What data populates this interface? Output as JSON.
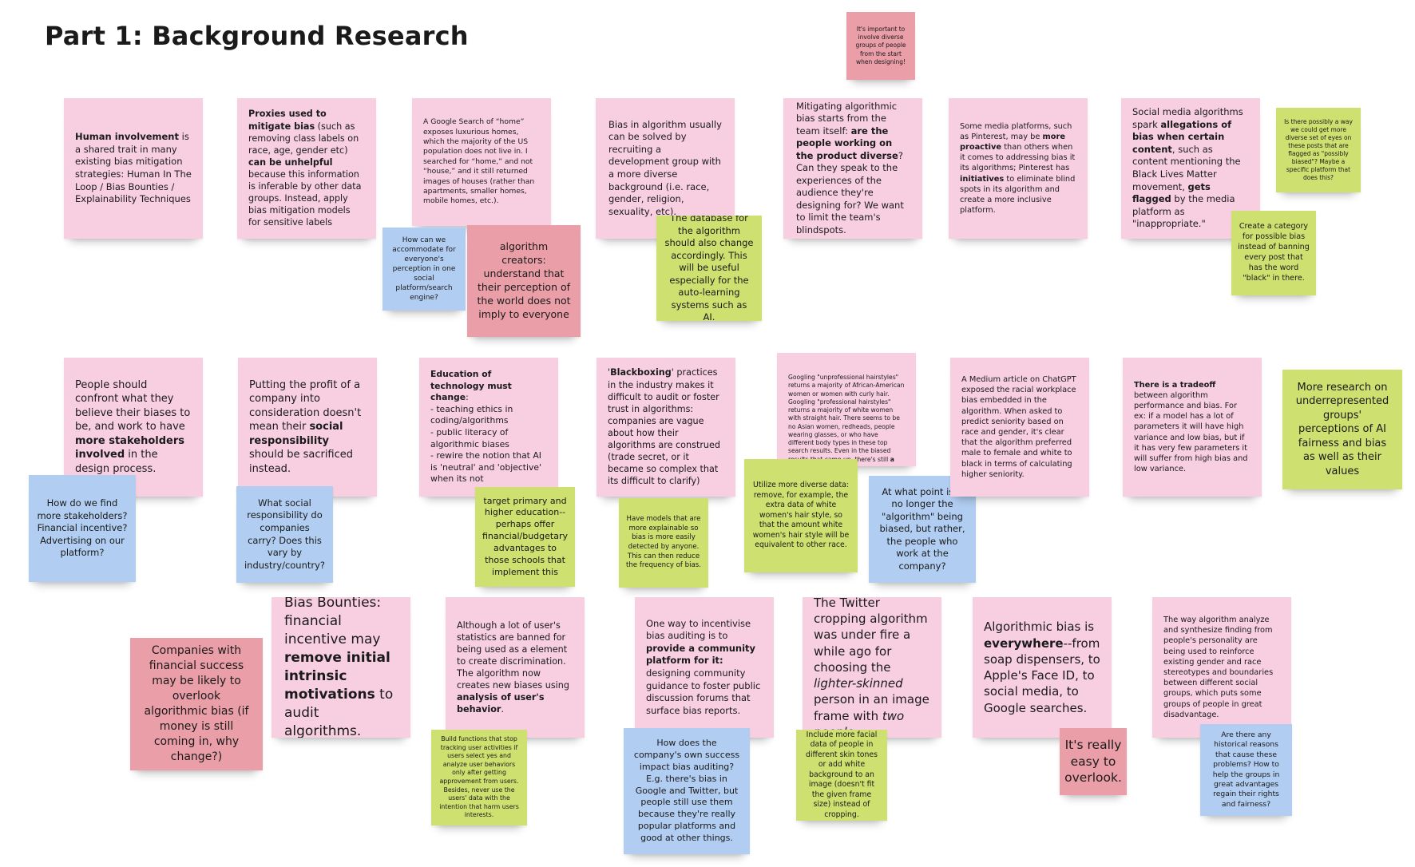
{
  "board": {
    "title": "Part 1: Background Research"
  },
  "colors": {
    "pink": "#f8cfe0",
    "red": "#ea9ea8",
    "green": "#cde070",
    "blue": "#b1cdf1"
  },
  "notes": {
    "n_top_red": "It's important to involve diverse groups of people from the start when designing!",
    "r1c1": "<b>Human involvement</b> is a shared trait in many existing bias mitigation strategies: Human In The Loop / Bias Bounties / Explainability Techniques",
    "r1c2": "<b>Proxies used to mitigate bias</b> (such as removing class labels on race, age, gender etc) <b>can be unhelpful</b> because this information is inferable by other data groups. Instead, apply bias mitigation models for sensitive labels",
    "r1c3": "A Google Search of “home” exposes luxurious homes, which the majority of the US population does not live in. I searched for “home,” and not “house,” and it still returned images of houses (rather than apartments, smaller homes, mobile homes, etc.).",
    "r1c3_blue": "How can we accommodate for everyone's perception in one social platform/search engine?",
    "r1c3_red": "algorithm creators: understand that their perception of the world does not imply to everyone",
    "r1c4": "Bias in algorithm usually can be solved by recruiting a development group with a more diverse background (i.e. race, gender, religion, sexuality, etc).",
    "r1c4_green": "The database for the algorithm should also change accordingly. This will be useful especially for the auto-learning systems such as AI.",
    "r1c5": "Mitigating algorithmic bias starts from the team itself: <b>are the people working on the product diverse</b>? Can they speak to the experiences of the audience they're designing for? We want to limit the team's blindspots.",
    "r1c6": "Some media platforms, such as Pinterest, may be <b>more proactive</b> than others when it comes to addressing bias it its algorithms; Pinterest has <b>initiatives</b> to eliminate blind spots in its algorithm and create a more inclusive platform.",
    "r1c7": "Social media algorithms spark <b>allegations of bias when certain content</b>, such as content mentioning the Black Lives Matter movement, <b>gets flagged</b> by the media platform as \"inappropriate.\"",
    "r1c7_green_top": "Is there possibly a way we could get more diverse set of eyes on these posts that are flagged as \"possibly biased\"? Maybe a specific platform that does this?",
    "r1c7_green": "Create a category for possible bias instead of banning every post that has the word \"black\" in there.",
    "r2c1": "People should confront what they believe their biases to be, and work to have <b>more stakeholders involved</b> in the design process.",
    "r2c1_blue": "How do we find more stakeholders? Financial incentive? Advertising on our platform?",
    "r2c2": "Putting the profit of a company into consideration doesn't mean their <b>social responsibility</b> should be sacrificed instead.",
    "r2c2_blue": "What social responsibility do companies carry? Does this vary by industry/country?",
    "r2c3": "<b>Education of technology must change</b>:<br>- teaching ethics in coding/algorithms<br>- public literacy of algorithmic biases<br>- rewire the notion that AI is 'neutral' and 'objective' when its not",
    "r2c3_green": "target primary and higher education--perhaps offer financial/budgetary advantages to those schools that implement this",
    "r2c4": "'<b>Blackboxing</b>' practices in the industry makes it difficult to audit or foster trust in algorithms: companies are vague about how their algorithms are construed (trade secret, or it became so complex that its difficult to clarify)",
    "r2c4_green": "Have models that are more explainable so bias is more easily detected by anyone. This can then reduce the frequency of bias.",
    "r2c5": "Googling \"unprofessional hairstyles\" returns a majority of African-American women or women with curly hair. Googling \"professional hairstyles\" returns a majority of white women with straight hair. There seems to be no Asian women, redheads, people wearing glasses, or who have different body types in these top search results. Even in the biased results that came up, there's still <b>a lack</b>",
    "r2c5_green": "Utilize more diverse data: remove, for example, the extra data of white women's hair style, so that the amount white women's hair style will be equivalent to other race.",
    "r2c5_blue": "At what point is it no longer the \"algorithm\" being biased, but rather, the people who work at the company?",
    "r2c6": "A Medium article on ChatGPT exposed the racial workplace bias embedded in the algorithm. When asked to predict seniority based on race and gender, it's clear that the algorithm preferred male to female and white to black in terms of calculating higher seniority.",
    "r2c7": "<b>There is a tradeoff</b> between algorithm performance and bias. For ex: if a model has a lot of parameters it will have high variance and low bias, but if it has very few parameters it will suffer from high bias and low variance.",
    "r2c8_green": "More research on underrepresented groups' perceptions of AI fairness and bias as well as their values",
    "r3_red": "Companies with financial success may be likely to overlook algorithmic bias (if money is still coming in, why change?)",
    "r3c1": "Bias Bounties: financial incentive may <b>remove initial intrinsic motivations</b> to audit algorithms.",
    "r3c2": "Although a lot of user's statistics are banned for being used as a element to create discrimination. The algorithm now creates new biases using <b>analysis of user's behavior</b>.",
    "r3c2_green": "Build functions that stop tracking user activities if users select yes and analyze user behaviors only after getting approvement from users. Besides, never use the users' data with the intention that harm users interests.",
    "r3c3": "One way to incentivise bias auditing is to <b>provide a community platform for it:</b> designing community guidance to foster public discussion forums that surface bias reports.",
    "r3c3_blue": "How does the company's own success impact bias auditing? E.g. there's bias in Google and Twitter, but people still use them because they're really popular platforms and good at other things.",
    "r3c4": "The Twitter cropping algorithm was under fire a while ago for choosing the <i>lighter-skinned</i> person in an image frame with <i>two people.</i>",
    "r3c4_green": "Include more facial data of people in different skin tones or add white background to an image (doesn't fit the given frame size) instead of cropping.",
    "r3c5": "Algorithmic bias is <b>everywhere</b>--from soap dispensers, to Apple's Face ID, to social media, to Google searches.",
    "r3c5_red": "It's really easy to overlook.",
    "r3c6": "The way algorithm analyze and synthesize finding from people's personality are being used to reinforce existing gender and race stereotypes and boundaries between different social groups, which puts some groups of people in great disadvantage.",
    "r3c6_blue": "Are there any historical reasons that cause these problems? How to help the groups in great advantages regain their rights and fairness?"
  }
}
